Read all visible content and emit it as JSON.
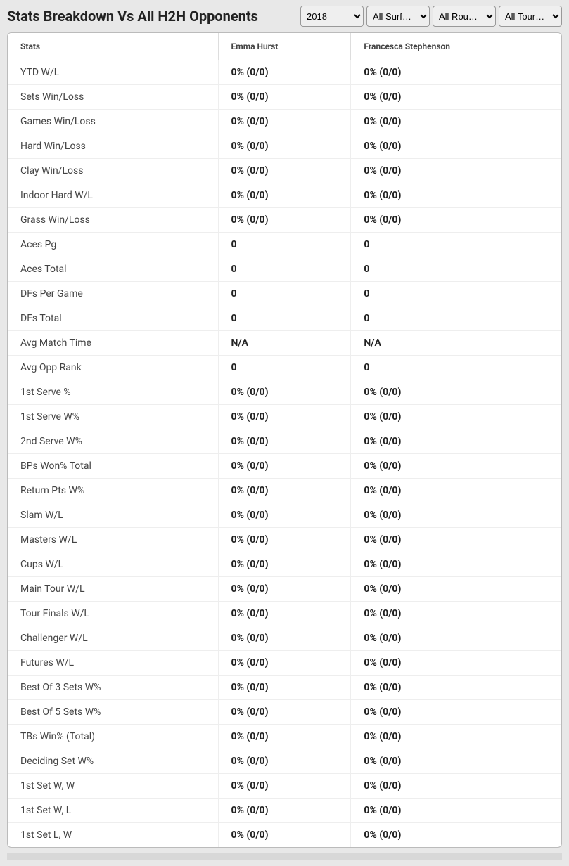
{
  "header": {
    "title": "Stats Breakdown Vs All H2H Opponents"
  },
  "filters": {
    "year": {
      "selected": "2018",
      "options": [
        "2018"
      ]
    },
    "surface": {
      "selected": "All Surf…",
      "options": [
        "All Surf…"
      ]
    },
    "round": {
      "selected": "All Rou…",
      "options": [
        "All Rou…"
      ]
    },
    "tournament": {
      "selected": "All Tour…",
      "options": [
        "All Tour…"
      ]
    }
  },
  "table": {
    "columns": [
      "Stats",
      "Emma Hurst",
      "Francesca Stephenson"
    ],
    "rows": [
      {
        "stat": "YTD W/L",
        "p1": "0% (0/0)",
        "p2": "0% (0/0)"
      },
      {
        "stat": "Sets Win/Loss",
        "p1": "0% (0/0)",
        "p2": "0% (0/0)"
      },
      {
        "stat": "Games Win/Loss",
        "p1": "0% (0/0)",
        "p2": "0% (0/0)"
      },
      {
        "stat": "Hard Win/Loss",
        "p1": "0% (0/0)",
        "p2": "0% (0/0)"
      },
      {
        "stat": "Clay Win/Loss",
        "p1": "0% (0/0)",
        "p2": "0% (0/0)"
      },
      {
        "stat": "Indoor Hard W/L",
        "p1": "0% (0/0)",
        "p2": "0% (0/0)"
      },
      {
        "stat": "Grass Win/Loss",
        "p1": "0% (0/0)",
        "p2": "0% (0/0)"
      },
      {
        "stat": "Aces Pg",
        "p1": "0",
        "p2": "0"
      },
      {
        "stat": "Aces Total",
        "p1": "0",
        "p2": "0"
      },
      {
        "stat": "DFs Per Game",
        "p1": "0",
        "p2": "0"
      },
      {
        "stat": "DFs Total",
        "p1": "0",
        "p2": "0"
      },
      {
        "stat": "Avg Match Time",
        "p1": "N/A",
        "p2": "N/A"
      },
      {
        "stat": "Avg Opp Rank",
        "p1": "0",
        "p2": "0"
      },
      {
        "stat": "1st Serve %",
        "p1": "0% (0/0)",
        "p2": "0% (0/0)"
      },
      {
        "stat": "1st Serve W%",
        "p1": "0% (0/0)",
        "p2": "0% (0/0)"
      },
      {
        "stat": "2nd Serve W%",
        "p1": "0% (0/0)",
        "p2": "0% (0/0)"
      },
      {
        "stat": "BPs Won% Total",
        "p1": "0% (0/0)",
        "p2": "0% (0/0)"
      },
      {
        "stat": "Return Pts W%",
        "p1": "0% (0/0)",
        "p2": "0% (0/0)"
      },
      {
        "stat": "Slam W/L",
        "p1": "0% (0/0)",
        "p2": "0% (0/0)"
      },
      {
        "stat": "Masters W/L",
        "p1": "0% (0/0)",
        "p2": "0% (0/0)"
      },
      {
        "stat": "Cups W/L",
        "p1": "0% (0/0)",
        "p2": "0% (0/0)"
      },
      {
        "stat": "Main Tour W/L",
        "p1": "0% (0/0)",
        "p2": "0% (0/0)"
      },
      {
        "stat": "Tour Finals W/L",
        "p1": "0% (0/0)",
        "p2": "0% (0/0)"
      },
      {
        "stat": "Challenger W/L",
        "p1": "0% (0/0)",
        "p2": "0% (0/0)"
      },
      {
        "stat": "Futures W/L",
        "p1": "0% (0/0)",
        "p2": "0% (0/0)"
      },
      {
        "stat": "Best Of 3 Sets W%",
        "p1": "0% (0/0)",
        "p2": "0% (0/0)"
      },
      {
        "stat": "Best Of 5 Sets W%",
        "p1": "0% (0/0)",
        "p2": "0% (0/0)"
      },
      {
        "stat": "TBs Win% (Total)",
        "p1": "0% (0/0)",
        "p2": "0% (0/0)"
      },
      {
        "stat": "Deciding Set W%",
        "p1": "0% (0/0)",
        "p2": "0% (0/0)"
      },
      {
        "stat": "1st Set W, W",
        "p1": "0% (0/0)",
        "p2": "0% (0/0)"
      },
      {
        "stat": "1st Set W, L",
        "p1": "0% (0/0)",
        "p2": "0% (0/0)"
      },
      {
        "stat": "1st Set L, W",
        "p1": "0% (0/0)",
        "p2": "0% (0/0)"
      }
    ]
  }
}
